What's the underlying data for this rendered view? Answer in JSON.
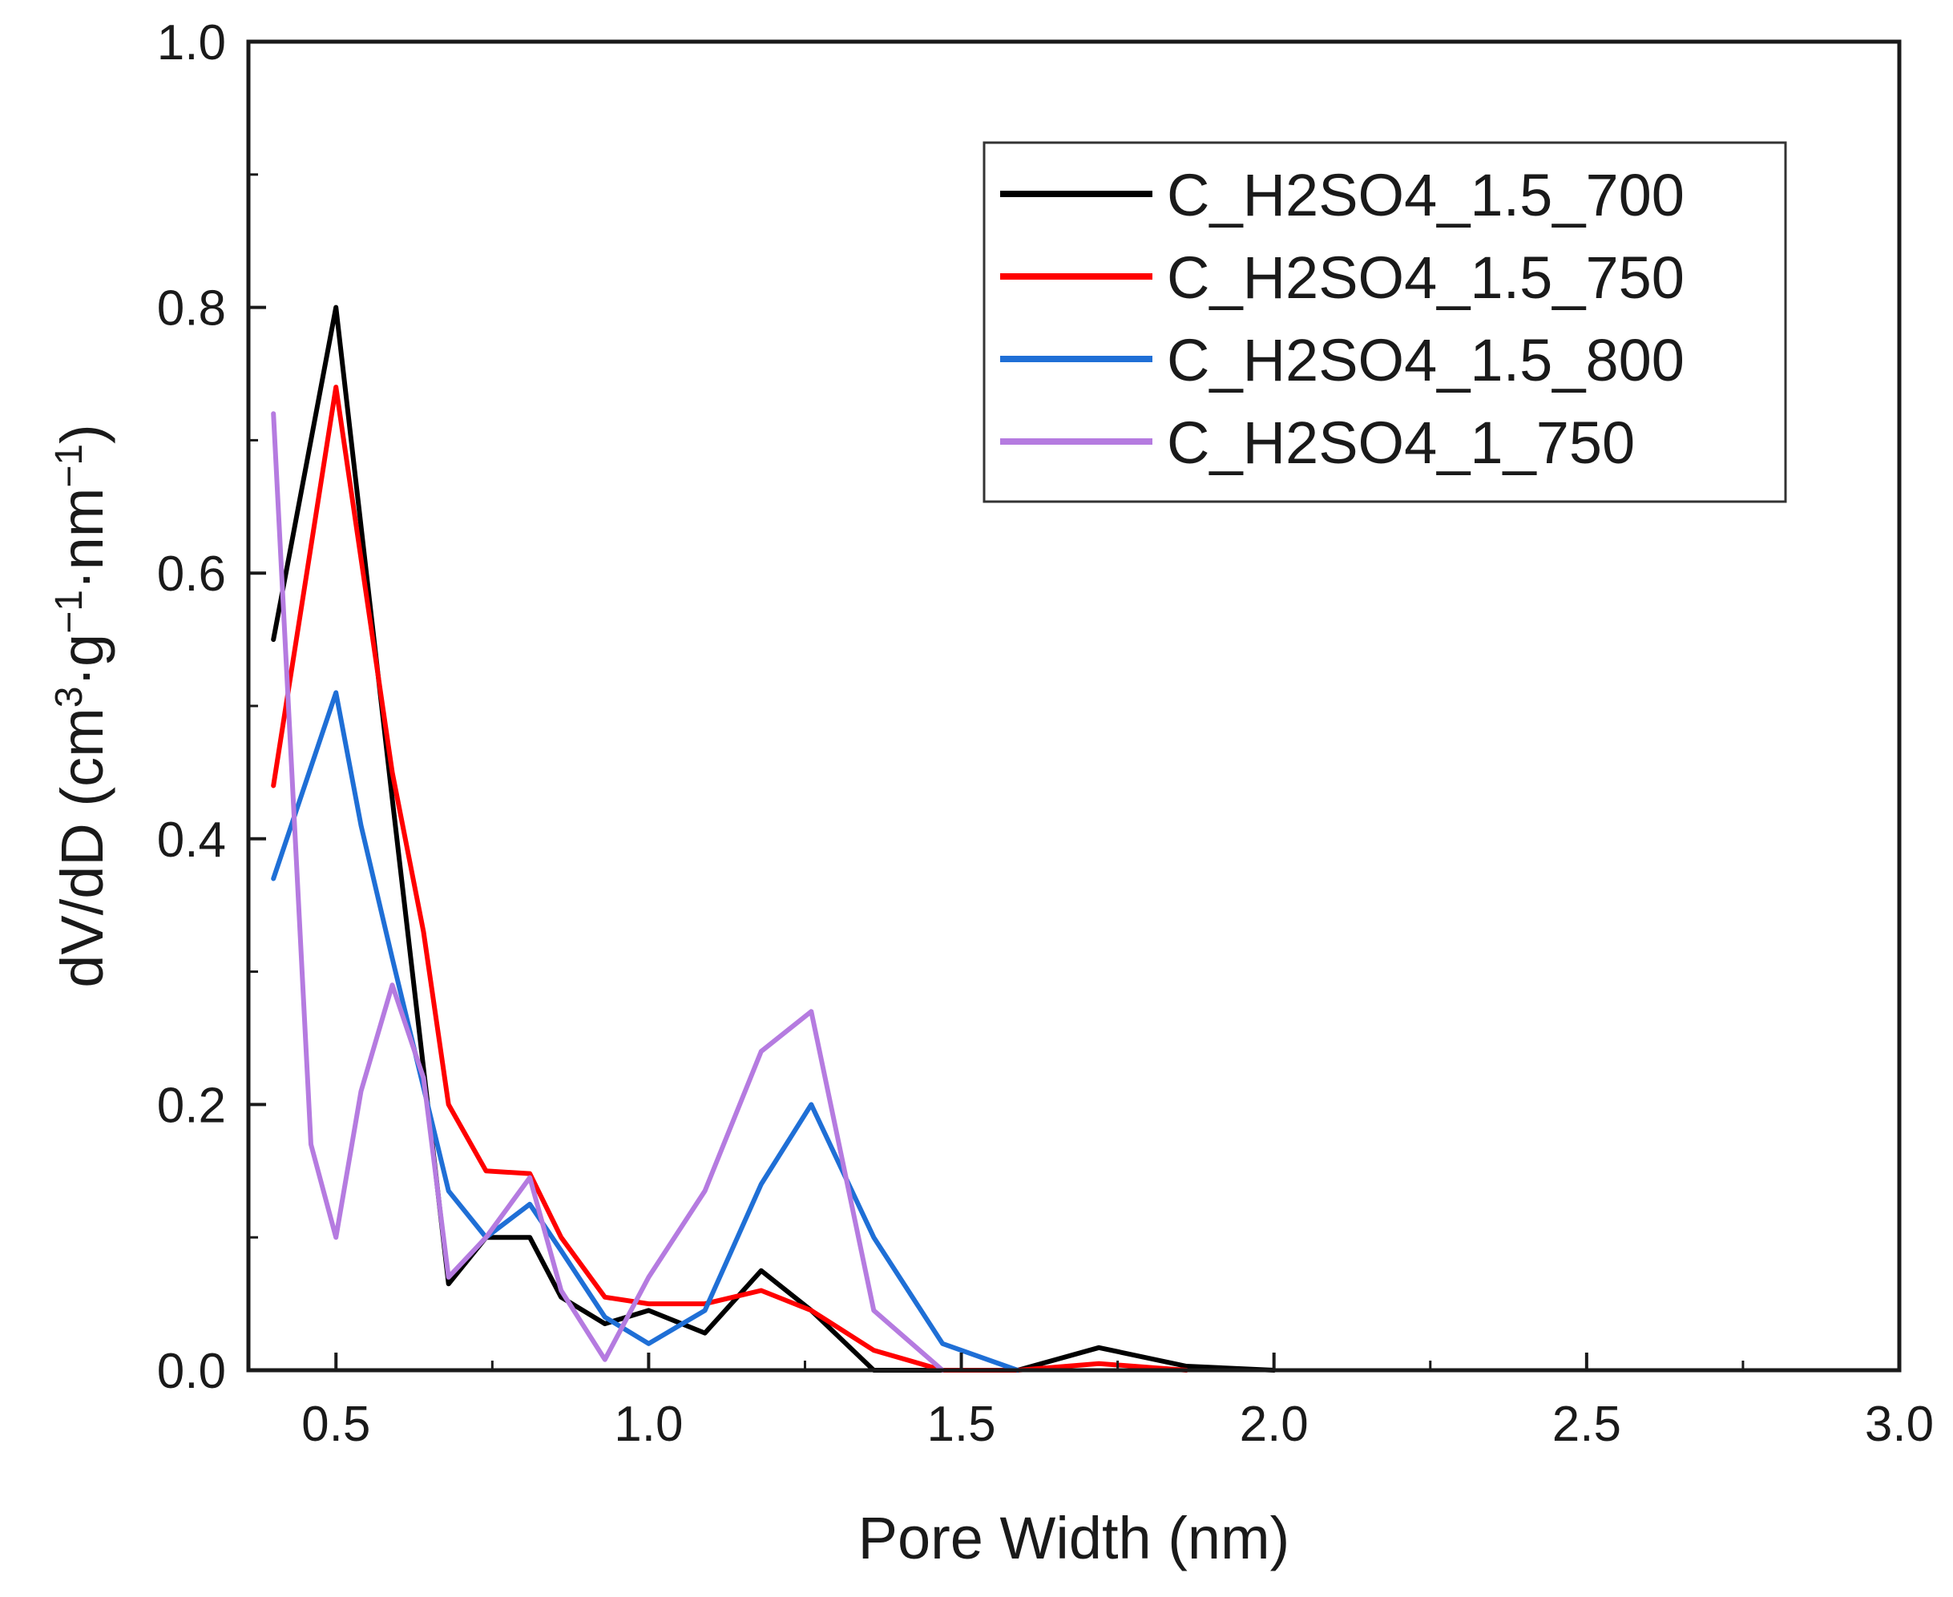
{
  "chart_data": {
    "type": "line",
    "title": "",
    "xlabel": "Pore Width (nm)",
    "ylabel": {
      "prefix": "dV/dD (cm",
      "sup1": "3",
      "mid1": "·g",
      "sup2": "−1",
      "mid2": "·nm",
      "sup3": "−1",
      "suffix": ")"
    },
    "xlim": [
      0.36,
      3.0
    ],
    "ylim": [
      0.0,
      1.0
    ],
    "xticks": [
      0.5,
      1.0,
      1.5,
      2.0,
      2.5,
      3.0
    ],
    "xtick_labels": [
      "0.5",
      "1.0",
      "1.5",
      "2.0",
      "2.5",
      "3.0"
    ],
    "yticks": [
      0.0,
      0.2,
      0.4,
      0.6,
      0.8,
      1.0
    ],
    "ytick_labels": [
      "0.0",
      "0.2",
      "0.4",
      "0.6",
      "0.8",
      "1.0"
    ],
    "grid": false,
    "legend_position": "top-right",
    "series": [
      {
        "name": "C_H2SO4_1.5_700",
        "color": "#000000",
        "x": [
          0.4,
          0.5,
          0.59,
          0.68,
          0.74,
          0.81,
          0.86,
          0.93,
          1.0,
          1.09,
          1.18,
          1.26,
          1.36,
          1.59,
          1.72,
          1.86,
          2.0
        ],
        "y": [
          0.55,
          0.8,
          0.43,
          0.065,
          0.1,
          0.1,
          0.055,
          0.035,
          0.045,
          0.028,
          0.075,
          0.045,
          0.0,
          0.0,
          0.017,
          0.003,
          0.0
        ]
      },
      {
        "name": "C_H2SO4_1.5_750",
        "color": "#ff0000",
        "x": [
          0.4,
          0.5,
          0.59,
          0.64,
          0.68,
          0.74,
          0.81,
          0.86,
          0.93,
          1.0,
          1.09,
          1.18,
          1.26,
          1.36,
          1.47,
          1.59,
          1.72,
          1.86
        ],
        "y": [
          0.44,
          0.74,
          0.45,
          0.33,
          0.2,
          0.15,
          0.148,
          0.1,
          0.055,
          0.05,
          0.05,
          0.06,
          0.045,
          0.015,
          0.0,
          0.0,
          0.005,
          0.0
        ]
      },
      {
        "name": "C_H2SO4_1.5_800",
        "color": "#1f6fd6",
        "x": [
          0.4,
          0.5,
          0.54,
          0.59,
          0.68,
          0.74,
          0.81,
          0.86,
          0.93,
          1.0,
          1.09,
          1.18,
          1.26,
          1.36,
          1.47,
          1.59
        ],
        "y": [
          0.37,
          0.51,
          0.41,
          0.31,
          0.135,
          0.1,
          0.125,
          0.09,
          0.04,
          0.02,
          0.045,
          0.14,
          0.2,
          0.1,
          0.02,
          0.0
        ]
      },
      {
        "name": "C_H2SO4_1_750",
        "color": "#b57be0",
        "x": [
          0.4,
          0.46,
          0.5,
          0.54,
          0.59,
          0.64,
          0.68,
          0.74,
          0.81,
          0.86,
          0.93,
          1.0,
          1.09,
          1.18,
          1.26,
          1.36,
          1.47
        ],
        "y": [
          0.72,
          0.17,
          0.1,
          0.21,
          0.29,
          0.22,
          0.07,
          0.1,
          0.145,
          0.06,
          0.008,
          0.07,
          0.135,
          0.24,
          0.27,
          0.045,
          0.0
        ]
      }
    ]
  }
}
